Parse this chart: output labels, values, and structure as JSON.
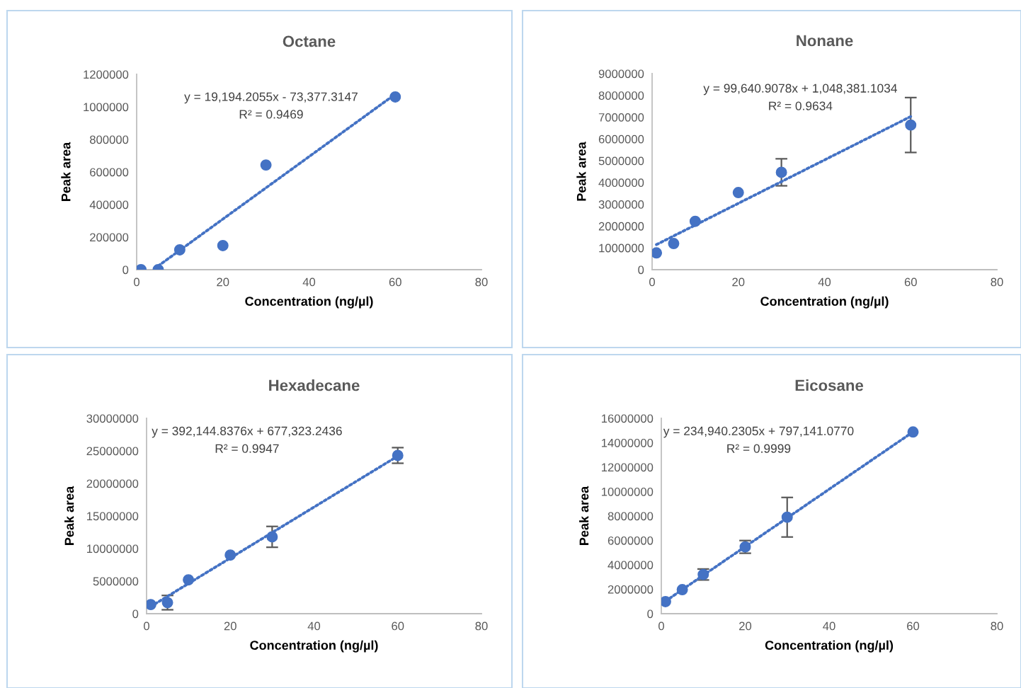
{
  "chart_data": [
    {
      "type": "scatter",
      "title": "Octane",
      "xlabel": "Concentration (ng/µl)",
      "ylabel": "Peak area",
      "xlim": [
        0,
        80
      ],
      "xticks": [
        0,
        20,
        40,
        60,
        80
      ],
      "ylim": [
        0,
        1200000
      ],
      "yticks": [
        0,
        200000,
        400000,
        600000,
        800000,
        1000000,
        1200000
      ],
      "grid": false,
      "legend": false,
      "annotations": [
        "y = 19,194.2055x - 73,377.3147",
        "R² = 0.9469"
      ],
      "series": [
        {
          "color": "#4472c4",
          "marker": "circle",
          "x": [
            1,
            5,
            10,
            20,
            30,
            60
          ],
          "values": [
            0,
            0,
            122000,
            148000,
            643000,
            1061000
          ]
        },
        {
          "type": "line",
          "color": "#4472c4",
          "line_style": "dotted",
          "marker": "none",
          "x": [
            5,
            60
          ],
          "values": [
            23000,
            1078000
          ]
        }
      ]
    },
    {
      "type": "scatter",
      "title": "Nonane",
      "xlabel": "Concentration (ng/µl)",
      "ylabel": "Peak area",
      "xlim": [
        0,
        80
      ],
      "xticks": [
        0,
        20,
        40,
        60,
        80
      ],
      "ylim": [
        0,
        9000000
      ],
      "yticks": [
        0,
        1000000,
        2000000,
        3000000,
        4000000,
        5000000,
        6000000,
        7000000,
        8000000,
        9000000
      ],
      "grid": false,
      "legend": false,
      "annotations": [
        "y = 99,640.9078x + 1,048,381.1034",
        "R² = 0.9634"
      ],
      "series": [
        {
          "color": "#4472c4",
          "marker": "circle",
          "x": [
            1,
            5,
            10,
            20,
            30,
            60
          ],
          "values": [
            770000,
            1200000,
            2220000,
            3540000,
            4470000,
            6640000
          ],
          "errors": [
            null,
            null,
            null,
            null,
            620000,
            1260000
          ]
        },
        {
          "type": "line",
          "color": "#4472c4",
          "line_style": "dotted",
          "marker": "none",
          "x": [
            1,
            60
          ],
          "values": [
            1150000,
            7030000
          ]
        }
      ]
    },
    {
      "type": "scatter",
      "title": "Hexadecane",
      "xlabel": "Concentration (ng/µl)",
      "ylabel": "Peak area",
      "xlim": [
        0,
        80
      ],
      "xticks": [
        0,
        20,
        40,
        60,
        80
      ],
      "ylim": [
        0,
        30000000
      ],
      "yticks": [
        0,
        5000000,
        10000000,
        15000000,
        20000000,
        25000000,
        30000000
      ],
      "grid": false,
      "legend": false,
      "annotations": [
        "y = 392,144.8376x + 677,323.2436",
        "R² = 0.9947"
      ],
      "series": [
        {
          "color": "#4472c4",
          "marker": "circle",
          "x": [
            1,
            5,
            10,
            20,
            30,
            60
          ],
          "values": [
            1400000,
            1700000,
            5200000,
            9000000,
            11800000,
            24300000
          ],
          "errors": [
            null,
            1100000,
            null,
            null,
            1600000,
            1200000
          ]
        },
        {
          "type": "line",
          "color": "#4472c4",
          "line_style": "dotted",
          "marker": "none",
          "x": [
            1,
            60
          ],
          "values": [
            1100000,
            24200000
          ]
        }
      ]
    },
    {
      "type": "scatter",
      "title": "Eicosane",
      "xlabel": "Concentration (ng/µl)",
      "ylabel": "Peak area",
      "xlim": [
        0,
        80
      ],
      "xticks": [
        0,
        20,
        40,
        60,
        80
      ],
      "ylim": [
        0,
        16000000
      ],
      "yticks": [
        0,
        2000000,
        4000000,
        6000000,
        8000000,
        10000000,
        12000000,
        14000000,
        16000000
      ],
      "grid": false,
      "legend": false,
      "annotations": [
        "y = 234,940.2305x + 797,141.0770",
        "R² = 0.9999"
      ],
      "series": [
        {
          "color": "#4472c4",
          "marker": "circle",
          "x": [
            1,
            5,
            10,
            20,
            30,
            60
          ],
          "values": [
            990000,
            1970000,
            3210000,
            5470000,
            7900000,
            14880000
          ],
          "errors": [
            null,
            null,
            450000,
            520000,
            1620000,
            null
          ]
        },
        {
          "type": "line",
          "color": "#4472c4",
          "line_style": "dotted",
          "marker": "none",
          "x": [
            1,
            60
          ],
          "values": [
            1030000,
            14890000
          ]
        }
      ]
    }
  ]
}
